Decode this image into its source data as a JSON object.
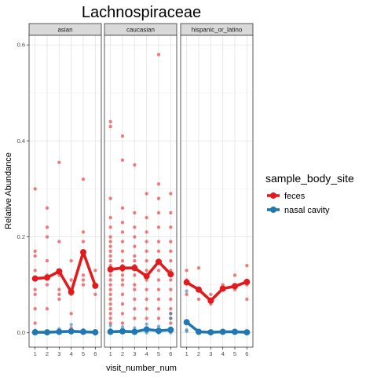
{
  "chart_data": {
    "type": "scatter",
    "title": "Lachnospiraceae",
    "xlabel": "visit_number_num",
    "ylabel": "Relative Abundance",
    "x_ticks": [
      1,
      2,
      3,
      4,
      5,
      6
    ],
    "y_ticks": [
      0.0,
      0.2,
      0.4,
      0.6
    ],
    "y_tick_labels": [
      "0.0",
      "0.2",
      "0.4",
      "0.6"
    ],
    "xlim": [
      0.5,
      6.5
    ],
    "ylim": [
      -0.03,
      0.62
    ],
    "grid": true,
    "legend": {
      "title": "sample_body_site",
      "placement": "right",
      "entries": [
        {
          "label": "feces",
          "color": "#e31a1c"
        },
        {
          "label": "nasal cavity",
          "color": "#1f78b4"
        }
      ]
    },
    "panels": [
      {
        "strip": "asian",
        "means": {
          "feces": [
            0.113,
            0.115,
            0.128,
            0.085,
            0.168,
            0.098
          ],
          "nasal cavity": [
            0.001,
            0.001,
            0.002,
            0.003,
            0.002,
            0.001
          ]
        },
        "points": {
          "feces": [
            [
              1,
              0.3
            ],
            [
              1,
              0.17
            ],
            [
              1,
              0.16
            ],
            [
              1,
              0.13
            ],
            [
              1,
              0.09
            ],
            [
              1,
              0.08
            ],
            [
              1,
              0.05
            ],
            [
              1,
              0.02
            ],
            [
              2,
              0.26
            ],
            [
              2,
              0.22
            ],
            [
              2,
              0.2
            ],
            [
              2,
              0.15
            ],
            [
              2,
              0.12
            ],
            [
              2,
              0.1
            ],
            [
              2,
              0.05
            ],
            [
              3,
              0.355
            ],
            [
              3,
              0.19
            ],
            [
              3,
              0.12
            ],
            [
              3,
              0.09
            ],
            [
              3,
              0.08
            ],
            [
              3,
              0.07
            ],
            [
              4,
              0.15
            ],
            [
              4,
              0.11
            ],
            [
              4,
              0.08
            ],
            [
              4,
              0.04
            ],
            [
              4,
              0.01
            ],
            [
              5,
              0.32
            ],
            [
              5,
              0.21
            ],
            [
              5,
              0.19
            ],
            [
              5,
              0.16
            ],
            [
              5,
              0.12
            ],
            [
              5,
              0.11
            ],
            [
              5,
              0.1
            ],
            [
              6,
              0.13
            ],
            [
              6,
              0.08
            ]
          ],
          "nasal cavity": [
            [
              1,
              0.005
            ],
            [
              1,
              0.002
            ],
            [
              1,
              0.0
            ],
            [
              2,
              0.003
            ],
            [
              2,
              0.0
            ],
            [
              3,
              0.008
            ],
            [
              3,
              0.0
            ],
            [
              4,
              0.017
            ],
            [
              4,
              0.004
            ],
            [
              4,
              0.0
            ],
            [
              5,
              0.006
            ],
            [
              5,
              0.0
            ],
            [
              6,
              0.004
            ],
            [
              6,
              0.0
            ]
          ]
        }
      },
      {
        "strip": "caucasian",
        "means": {
          "feces": [
            0.132,
            0.135,
            0.135,
            0.118,
            0.148,
            0.122
          ],
          "nasal cavity": [
            0.002,
            0.003,
            0.002,
            0.007,
            0.004,
            0.006
          ]
        },
        "points": {
          "feces": [
            [
              1,
              0.44
            ],
            [
              1,
              0.43
            ],
            [
              1,
              0.28
            ],
            [
              1,
              0.24
            ],
            [
              1,
              0.22
            ],
            [
              1,
              0.2
            ],
            [
              1,
              0.19
            ],
            [
              1,
              0.18
            ],
            [
              1,
              0.17
            ],
            [
              1,
              0.16
            ],
            [
              1,
              0.15
            ],
            [
              1,
              0.14
            ],
            [
              1,
              0.13
            ],
            [
              1,
              0.12
            ],
            [
              1,
              0.11
            ],
            [
              1,
              0.1
            ],
            [
              1,
              0.09
            ],
            [
              1,
              0.08
            ],
            [
              1,
              0.07
            ],
            [
              1,
              0.06
            ],
            [
              1,
              0.05
            ],
            [
              1,
              0.04
            ],
            [
              1,
              0.03
            ],
            [
              1,
              0.02
            ],
            [
              2,
              0.41
            ],
            [
              2,
              0.36
            ],
            [
              2,
              0.26
            ],
            [
              2,
              0.23
            ],
            [
              2,
              0.21
            ],
            [
              2,
              0.19
            ],
            [
              2,
              0.17
            ],
            [
              2,
              0.15
            ],
            [
              2,
              0.14
            ],
            [
              2,
              0.13
            ],
            [
              2,
              0.12
            ],
            [
              2,
              0.11
            ],
            [
              2,
              0.1
            ],
            [
              2,
              0.08
            ],
            [
              2,
              0.06
            ],
            [
              2,
              0.04
            ],
            [
              2,
              0.02
            ],
            [
              3,
              0.35
            ],
            [
              3,
              0.25
            ],
            [
              3,
              0.22
            ],
            [
              3,
              0.2
            ],
            [
              3,
              0.18
            ],
            [
              3,
              0.16
            ],
            [
              3,
              0.15
            ],
            [
              3,
              0.14
            ],
            [
              3,
              0.12
            ],
            [
              3,
              0.1
            ],
            [
              3,
              0.09
            ],
            [
              3,
              0.07
            ],
            [
              3,
              0.05
            ],
            [
              3,
              0.03
            ],
            [
              4,
              0.29
            ],
            [
              4,
              0.24
            ],
            [
              4,
              0.21
            ],
            [
              4,
              0.19
            ],
            [
              4,
              0.17
            ],
            [
              4,
              0.15
            ],
            [
              4,
              0.13
            ],
            [
              4,
              0.11
            ],
            [
              4,
              0.09
            ],
            [
              4,
              0.07
            ],
            [
              4,
              0.05
            ],
            [
              4,
              0.03
            ],
            [
              5,
              0.58
            ],
            [
              5,
              0.31
            ],
            [
              5,
              0.28
            ],
            [
              5,
              0.25
            ],
            [
              5,
              0.22
            ],
            [
              5,
              0.19
            ],
            [
              5,
              0.17
            ],
            [
              5,
              0.15
            ],
            [
              5,
              0.13
            ],
            [
              5,
              0.11
            ],
            [
              5,
              0.09
            ],
            [
              5,
              0.07
            ],
            [
              5,
              0.05
            ],
            [
              5,
              0.03
            ],
            [
              6,
              0.29
            ],
            [
              6,
              0.25
            ],
            [
              6,
              0.22
            ],
            [
              6,
              0.19
            ],
            [
              6,
              0.17
            ],
            [
              6,
              0.15
            ],
            [
              6,
              0.13
            ],
            [
              6,
              0.11
            ],
            [
              6,
              0.09
            ],
            [
              6,
              0.07
            ],
            [
              6,
              0.05
            ],
            [
              6,
              0.04
            ],
            [
              6,
              0.03
            ],
            [
              6,
              0.02
            ]
          ],
          "nasal cavity": [
            [
              1,
              0.015
            ],
            [
              1,
              0.006
            ],
            [
              1,
              0.0
            ],
            [
              2,
              0.012
            ],
            [
              2,
              0.004
            ],
            [
              2,
              0.0
            ],
            [
              3,
              0.01
            ],
            [
              3,
              0.003
            ],
            [
              3,
              0.0
            ],
            [
              4,
              0.018
            ],
            [
              4,
              0.009
            ],
            [
              4,
              0.0
            ],
            [
              5,
              0.013
            ],
            [
              5,
              0.005
            ],
            [
              5,
              0.0
            ],
            [
              6,
              0.04
            ],
            [
              6,
              0.03
            ],
            [
              6,
              0.01
            ],
            [
              6,
              0.0
            ]
          ]
        }
      },
      {
        "strip": "hispanic_or_latino",
        "means": {
          "feces": [
            0.105,
            0.09,
            0.067,
            0.092,
            0.097,
            0.106
          ],
          "nasal cavity": [
            0.022,
            0.002,
            0.001,
            0.002,
            0.002,
            0.001
          ]
        },
        "points": {
          "feces": [
            [
              1,
              0.13
            ],
            [
              1,
              0.11
            ],
            [
              1,
              0.08
            ],
            [
              2,
              0.135
            ],
            [
              2,
              0.09
            ],
            [
              2,
              0.07
            ],
            [
              3,
              0.08
            ],
            [
              3,
              0.06
            ],
            [
              4,
              0.1
            ],
            [
              4,
              0.09
            ],
            [
              5,
              0.12
            ],
            [
              5,
              0.09
            ],
            [
              6,
              0.14
            ],
            [
              6,
              0.1
            ],
            [
              6,
              0.07
            ]
          ],
          "nasal cavity": [
            [
              1,
              0.087
            ],
            [
              1,
              0.006
            ],
            [
              1,
              0.003
            ],
            [
              2,
              0.0
            ],
            [
              3,
              0.0
            ],
            [
              4,
              0.004
            ],
            [
              4,
              0.0
            ],
            [
              5,
              0.0
            ],
            [
              6,
              0.0
            ]
          ]
        }
      }
    ]
  }
}
